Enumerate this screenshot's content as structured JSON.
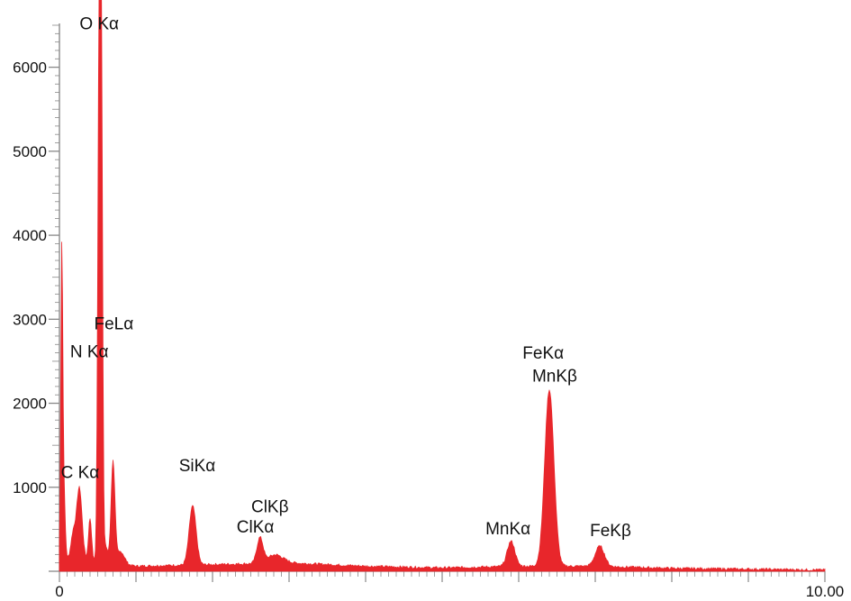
{
  "chart_data": {
    "type": "area",
    "title": "",
    "xlabel": "",
    "ylabel": "",
    "xlim": [
      0,
      10
    ],
    "ylim": [
      0,
      6500
    ],
    "x_ticks": [
      {
        "value": 0,
        "label": "0"
      },
      {
        "value": 10,
        "label": "10.00"
      }
    ],
    "y_ticks": [
      {
        "value": 1000,
        "label": "1000"
      },
      {
        "value": 2000,
        "label": "2000"
      },
      {
        "value": 3000,
        "label": "3000"
      },
      {
        "value": 4000,
        "label": "4000"
      },
      {
        "value": 5000,
        "label": "5000"
      },
      {
        "value": 6000,
        "label": "6000"
      }
    ],
    "color": "#e8262b",
    "baseline": 25,
    "peaks": [
      {
        "x": 0.03,
        "height": 3150,
        "width": 0.012
      },
      {
        "x": 0.05,
        "height": 1050,
        "width": 0.02
      },
      {
        "x": 0.18,
        "height": 300,
        "width": 0.03
      },
      {
        "x": 0.26,
        "height": 850,
        "width": 0.035
      },
      {
        "x": 0.4,
        "height": 500,
        "width": 0.02
      },
      {
        "x": 0.52,
        "height": 6450,
        "width": 0.018
      },
      {
        "x": 0.55,
        "height": 5000,
        "width": 0.015
      },
      {
        "x": 0.6,
        "height": 200,
        "width": 0.03
      },
      {
        "x": 0.7,
        "height": 1200,
        "width": 0.025
      },
      {
        "x": 0.8,
        "height": 150,
        "width": 0.05
      },
      {
        "x": 1.74,
        "height": 700,
        "width": 0.045
      },
      {
        "x": 2.62,
        "height": 300,
        "width": 0.04
      },
      {
        "x": 2.82,
        "height": 100,
        "width": 0.1
      },
      {
        "x": 5.9,
        "height": 300,
        "width": 0.05
      },
      {
        "x": 6.4,
        "height": 2100,
        "width": 0.06
      },
      {
        "x": 7.06,
        "height": 240,
        "width": 0.06
      }
    ],
    "background": [
      {
        "x": 0.3,
        "y": 140
      },
      {
        "x": 1.0,
        "y": 60
      },
      {
        "x": 2.0,
        "y": 80
      },
      {
        "x": 3.0,
        "y": 100
      },
      {
        "x": 4.0,
        "y": 60
      },
      {
        "x": 5.0,
        "y": 40
      },
      {
        "x": 6.0,
        "y": 60
      },
      {
        "x": 7.0,
        "y": 60
      },
      {
        "x": 8.0,
        "y": 35
      },
      {
        "x": 9.0,
        "y": 25
      },
      {
        "x": 10.0,
        "y": 15
      }
    ],
    "annotations": [
      {
        "text": "O Kα",
        "x": 0.52,
        "y": 6450
      },
      {
        "text": "FeLα",
        "x": 0.71,
        "y": 2880
      },
      {
        "text": "N Kα",
        "x": 0.39,
        "y": 2550
      },
      {
        "text": "C Kα",
        "x": 0.27,
        "y": 1110
      },
      {
        "text": "SiKα",
        "x": 1.8,
        "y": 1190
      },
      {
        "text": "ClKβ",
        "x": 2.75,
        "y": 700
      },
      {
        "text": "ClKα",
        "x": 2.56,
        "y": 460
      },
      {
        "text": "MnKα",
        "x": 5.86,
        "y": 440
      },
      {
        "text": "FeKα",
        "x": 6.32,
        "y": 2530
      },
      {
        "text": "MnKβ",
        "x": 6.47,
        "y": 2260
      },
      {
        "text": "FeKβ",
        "x": 7.2,
        "y": 420
      }
    ]
  }
}
